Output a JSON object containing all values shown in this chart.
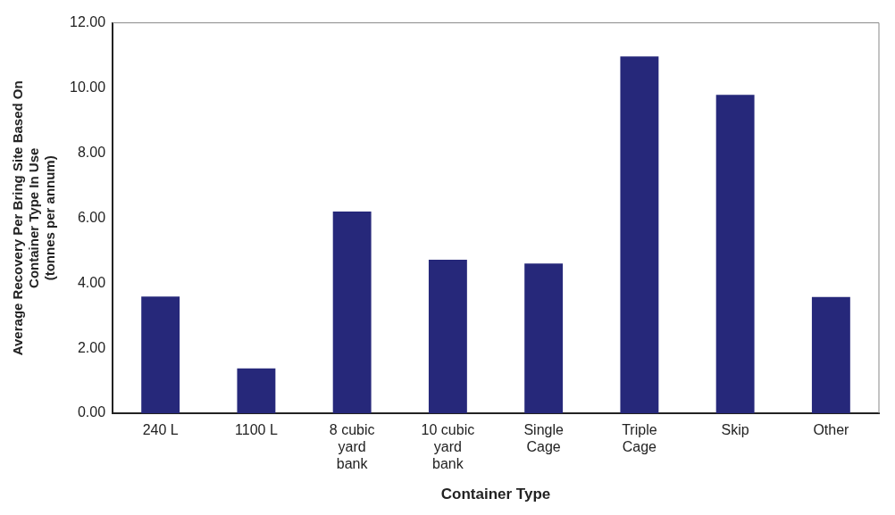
{
  "chart_data": {
    "type": "bar",
    "xlabel": "Container Type",
    "ylabel": "Average Recovery Per Bring Site Based On Container Type In Use (tonnes per annum)",
    "categories": [
      "240 L",
      "1100 L",
      "8 cubic yard bank",
      "10 cubic yard bank",
      "Single Cage",
      "Triple Cage",
      "Skip",
      "Other"
    ],
    "values": [
      3.59,
      1.38,
      6.2,
      4.72,
      4.6,
      10.97,
      9.79,
      3.57
    ],
    "color": "#26287a",
    "ylim": [
      0,
      12
    ],
    "yticks": [
      {
        "value": 0,
        "label": "0.00"
      },
      {
        "value": 2,
        "label": "2.00"
      },
      {
        "value": 4,
        "label": "4.00"
      },
      {
        "value": 6,
        "label": "6.00"
      },
      {
        "value": 8,
        "label": "8.00"
      },
      {
        "value": 10,
        "label": "10.00"
      },
      {
        "value": 12,
        "label": "12.00"
      }
    ],
    "grid": false,
    "legend": false
  }
}
